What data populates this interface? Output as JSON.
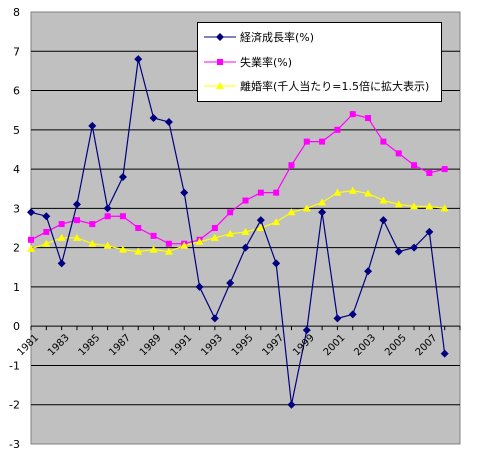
{
  "chart_data": {
    "type": "line",
    "x": [
      "1981",
      "1982",
      "1983",
      "1984",
      "1985",
      "1986",
      "1987",
      "1988",
      "1989",
      "1990",
      "1991",
      "1992",
      "1993",
      "1994",
      "1995",
      "1996",
      "1997",
      "1998",
      "1999",
      "2000",
      "2001",
      "2002",
      "2003",
      "2004",
      "2005",
      "2006",
      "2007",
      "2008",
      "2009"
    ],
    "xtick_labels": [
      "1981",
      "1983",
      "1985",
      "1987",
      "1989",
      "1991",
      "1993",
      "1995",
      "1997",
      "1999",
      "2001",
      "2003",
      "2005",
      "2007"
    ],
    "ylim": [
      -3,
      8
    ],
    "yticks": [
      "8",
      "7",
      "6",
      "5",
      "4",
      "3",
      "2",
      "1",
      "0",
      "-1",
      "-2",
      "-3"
    ],
    "grid": "horizontal",
    "legend_position": "top-right",
    "series": [
      {
        "name": "経済成長率(%)",
        "color": "#000080",
        "marker": "diamond",
        "values": [
          2.9,
          2.8,
          1.6,
          3.1,
          5.1,
          3.0,
          3.8,
          6.8,
          5.3,
          5.2,
          3.4,
          1.0,
          0.2,
          1.1,
          2.0,
          2.7,
          1.6,
          -2.0,
          -0.1,
          2.9,
          0.2,
          0.3,
          1.4,
          2.7,
          1.9,
          2.0,
          2.4,
          -0.7,
          null
        ]
      },
      {
        "name": "失業率(%)",
        "color": "#ff00ff",
        "marker": "square",
        "values": [
          2.2,
          2.4,
          2.6,
          2.7,
          2.6,
          2.8,
          2.8,
          2.5,
          2.3,
          2.1,
          2.1,
          2.2,
          2.5,
          2.9,
          3.2,
          3.4,
          3.4,
          4.1,
          4.7,
          4.7,
          5.0,
          5.4,
          5.3,
          4.7,
          4.4,
          4.1,
          3.9,
          4.0,
          null
        ]
      },
      {
        "name": "離婚率(千人当たり=1.5倍に拡大表示)",
        "color": "#ffff00",
        "marker": "triangle",
        "values": [
          1.97,
          2.1,
          2.25,
          2.25,
          2.1,
          2.05,
          1.95,
          1.9,
          1.95,
          1.9,
          2.05,
          2.15,
          2.25,
          2.35,
          2.4,
          2.5,
          2.65,
          2.9,
          3.0,
          3.15,
          3.4,
          3.45,
          3.38,
          3.2,
          3.1,
          3.05,
          3.05,
          3.0,
          null
        ]
      }
    ]
  }
}
